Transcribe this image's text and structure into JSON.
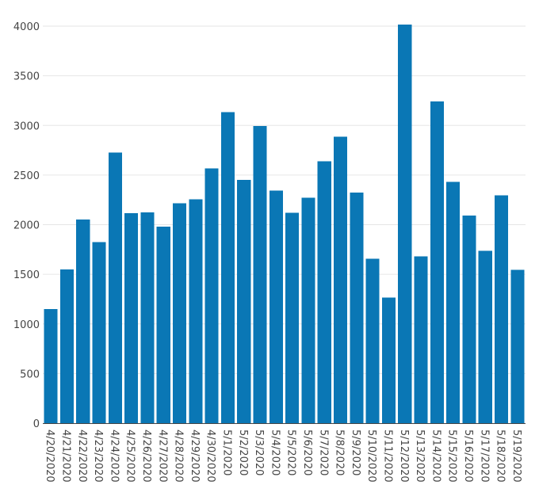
{
  "chart_data": {
    "type": "bar",
    "title": "",
    "xlabel": "",
    "ylabel": "",
    "categories": [
      "4/20/2020",
      "4/21/2020",
      "4/22/2020",
      "4/23/2020",
      "4/24/2020",
      "4/25/2020",
      "4/26/2020",
      "4/27/2020",
      "4/28/2020",
      "4/29/2020",
      "4/30/2020",
      "5/1/2020",
      "5/2/2020",
      "5/3/2020",
      "5/4/2020",
      "5/5/2020",
      "5/6/2020",
      "5/7/2020",
      "5/8/2020",
      "5/9/2020",
      "5/10/2020",
      "5/11/2020",
      "5/12/2020",
      "5/13/2020",
      "5/14/2020",
      "5/15/2020",
      "5/16/2020",
      "5/17/2020",
      "5/18/2020",
      "5/19/2020"
    ],
    "values": [
      1150,
      1550,
      2050,
      1825,
      2725,
      2115,
      2125,
      1980,
      2215,
      2255,
      2565,
      3135,
      2450,
      2995,
      2345,
      2120,
      2270,
      2640,
      2885,
      2325,
      1655,
      1265,
      4015,
      1680,
      3240,
      2430,
      2090,
      1735,
      2295,
      1545
    ],
    "ylim": [
      0,
      4000
    ],
    "yticks": [
      "0",
      "500",
      "1000",
      "1500",
      "2000",
      "2500",
      "3000",
      "3500",
      "4000"
    ],
    "grid": true,
    "bar_color": "#0a77b5",
    "grid_color": "#e6e6e6",
    "axis_color": "#444444"
  }
}
